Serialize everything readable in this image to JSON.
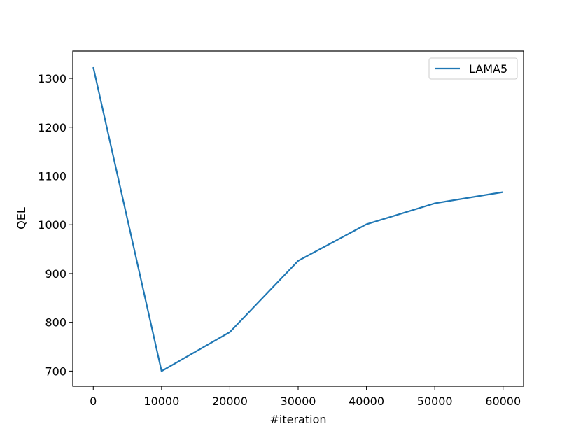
{
  "chart_data": {
    "type": "line",
    "x_label": "#iteration",
    "y_label": "QEL",
    "x": [
      0,
      10000,
      20000,
      30000,
      40000,
      50000,
      60000
    ],
    "series": [
      {
        "name": "LAMA5",
        "color": "#1f77b4",
        "values": [
          1323,
          700,
          780,
          926,
          1001,
          1044,
          1067
        ]
      }
    ],
    "xlim": [
      -3000,
      63000
    ],
    "xticks": [
      0,
      10000,
      20000,
      30000,
      40000,
      50000,
      60000
    ],
    "ylim": [
      669,
      1356
    ],
    "yticks": [
      700,
      800,
      900,
      1000,
      1100,
      1200,
      1300
    ],
    "grid": false,
    "legend": "upper right"
  }
}
